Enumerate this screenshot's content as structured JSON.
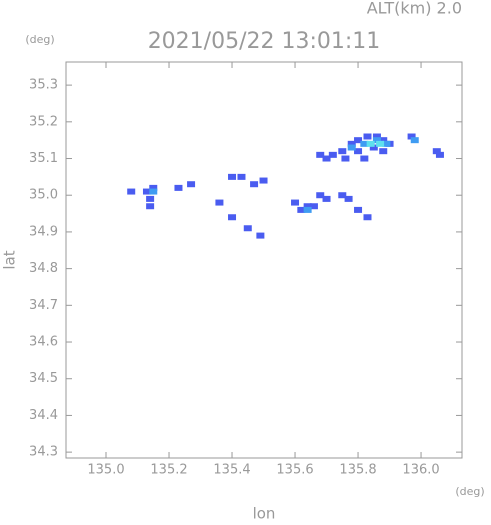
{
  "chart_data": {
    "type": "radar-map",
    "title": "2021/05/22 13:01:11",
    "altitude_label": "ALT(km)  2.0",
    "x_label": "lon",
    "y_label": "lat",
    "x_unit": "(deg)",
    "y_unit": "(deg)",
    "xlim": [
      134.873,
      136.13
    ],
    "ylim": [
      34.284,
      35.363
    ],
    "xticks": [
      {
        "value": 135,
        "label": "135.0"
      },
      135.2,
      135.4,
      135.6,
      135.8,
      {
        "value": 136,
        "label": "136.0"
      }
    ],
    "yticks": [
      34.3,
      34.4,
      34.5,
      34.6,
      34.7,
      34.8,
      34.9,
      {
        "value": 35,
        "label": "35.0"
      },
      35.1,
      35.2,
      35.3
    ],
    "series": [
      {
        "color": "#4a5cf0",
        "x": [
          135.7,
          135.72,
          135.75,
          135.78,
          135.8,
          135.83,
          135.86,
          135.88,
          135.9,
          135.85,
          135.8,
          135.76,
          135.82,
          135.88,
          135.68,
          135.97,
          136.05,
          136.06,
          135.62,
          135.64,
          135.66,
          135.68,
          135.7,
          135.75,
          135.77,
          135.8,
          135.83,
          135.6,
          135.08,
          135.13,
          135.15,
          135.14,
          135.14,
          135.23,
          135.27,
          135.36,
          135.4,
          135.43,
          135.47,
          135.5,
          135.4,
          135.45,
          135.49
        ],
        "y": [
          35.1,
          35.11,
          35.12,
          35.14,
          35.15,
          35.16,
          35.16,
          35.15,
          35.14,
          35.13,
          35.12,
          35.1,
          35.1,
          35.12,
          35.11,
          35.16,
          35.12,
          35.11,
          34.96,
          34.97,
          34.97,
          35.0,
          34.99,
          35.0,
          34.99,
          34.96,
          34.94,
          34.98,
          35.01,
          35.01,
          35.02,
          34.99,
          34.97,
          35.02,
          35.03,
          34.98,
          35.05,
          35.05,
          35.03,
          35.04,
          34.94,
          34.91,
          34.89
        ]
      },
      {
        "color": "#3f9cf2",
        "x": [
          135.78,
          135.82,
          135.86,
          135.89,
          135.15,
          135.64,
          135.98
        ],
        "y": [
          35.13,
          35.14,
          35.15,
          35.14,
          35.01,
          34.96,
          35.15
        ]
      },
      {
        "color": "#5ee0ee",
        "x": [
          135.84,
          135.87
        ],
        "y": [
          35.14,
          35.14
        ]
      }
    ]
  }
}
